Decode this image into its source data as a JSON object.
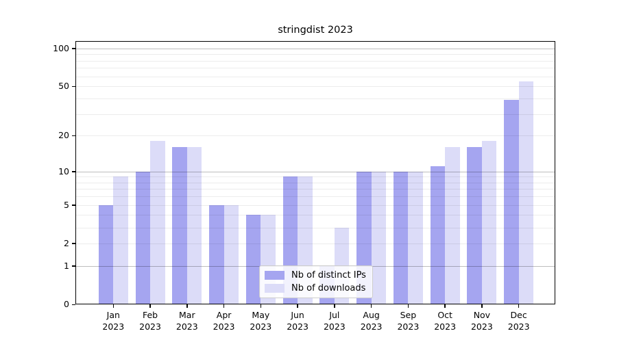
{
  "chart_data": {
    "type": "bar",
    "title": "stringdist 2023",
    "months": [
      "Jan",
      "Feb",
      "Mar",
      "Apr",
      "May",
      "Jun",
      "Jul",
      "Aug",
      "Sep",
      "Oct",
      "Nov",
      "Dec"
    ],
    "year": "2023",
    "series": [
      {
        "name": "Nb of distinct IPs",
        "color": "#a5a5f0",
        "values": [
          5,
          10,
          16,
          5,
          4,
          9,
          1,
          10,
          10,
          11,
          16,
          39
        ]
      },
      {
        "name": "Nb of downloads",
        "color": "#dcdcf8",
        "values": [
          9,
          18,
          16,
          5,
          4,
          9,
          3,
          10,
          10,
          16,
          18,
          55
        ]
      }
    ],
    "yscale": "log1p",
    "yticks": [
      0,
      1,
      2,
      5,
      10,
      20,
      50,
      100
    ],
    "major_gridlines": [
      1,
      10,
      100
    ],
    "minor_gridlines": [
      2,
      3,
      4,
      5,
      6,
      7,
      8,
      9,
      20,
      30,
      40,
      50,
      60,
      70,
      80,
      90
    ],
    "ylim": [
      0,
      114
    ],
    "xlabel": "",
    "ylabel": "",
    "grid": true,
    "legend_position": "lower center"
  }
}
